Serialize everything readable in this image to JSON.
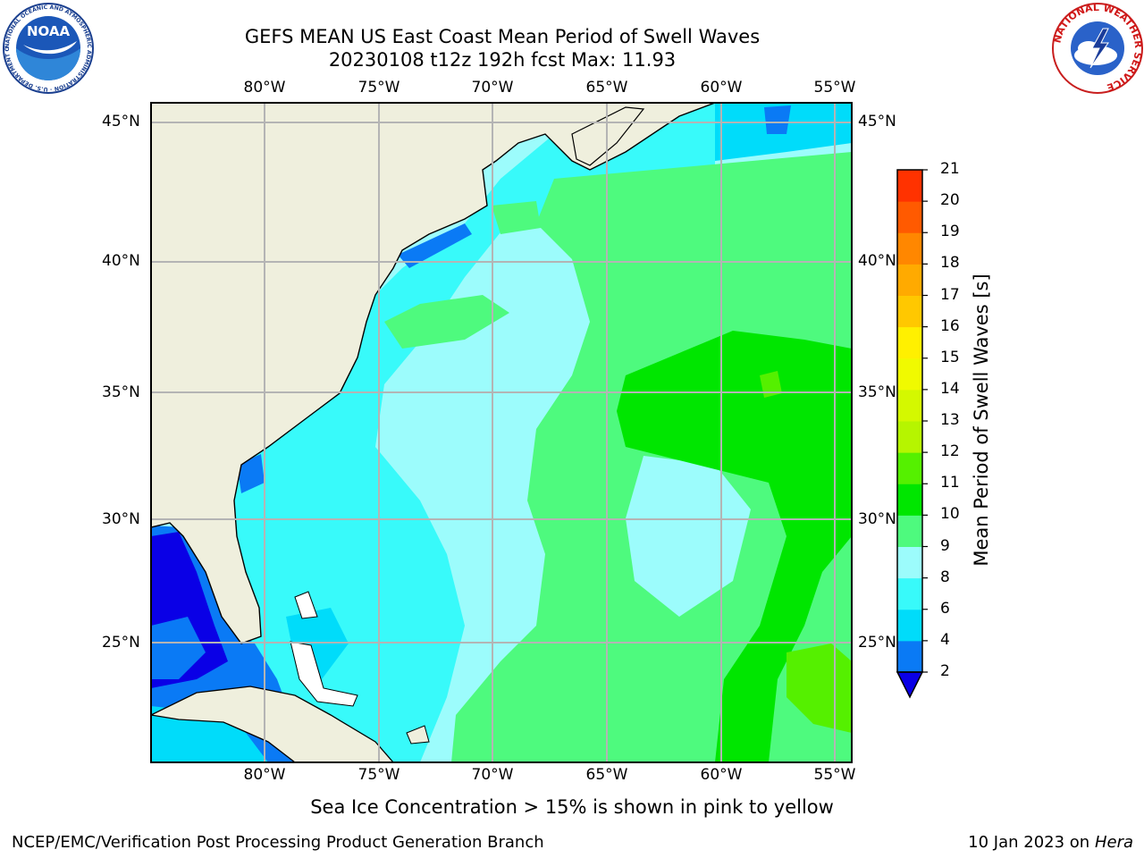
{
  "title": {
    "line1": "GEFS MEAN US East Coast Mean Period of Swell Waves",
    "line2": "20230108 t12z 192h fcst   Max: 11.93"
  },
  "map": {
    "lon_labels": [
      "80°W",
      "75°W",
      "70°W",
      "65°W",
      "60°W",
      "55°W"
    ],
    "lat_labels": [
      "45°N",
      "40°N",
      "35°N",
      "30°N",
      "25°N"
    ],
    "lon_range": [
      -85,
      -54
    ],
    "lat_range": [
      20,
      46
    ],
    "grid": true
  },
  "colorbar": {
    "label": "Mean Period of Swell Waves [s]",
    "ticks": [
      "2",
      "4",
      "6",
      "8",
      "9",
      "10",
      "11",
      "12",
      "13",
      "14",
      "15",
      "16",
      "17",
      "18",
      "19",
      "20",
      "21"
    ],
    "colors": [
      "#0a7af5",
      "#00dcfa",
      "#38fafa",
      "#9cfcfc",
      "#4efa7e",
      "#00e600",
      "#55f000",
      "#b6f500",
      "#d4f800",
      "#f0fa00",
      "#fff000",
      "#ffc800",
      "#ffaa00",
      "#ff8700",
      "#ff5a00",
      "#ff3200"
    ],
    "extend_color": "#0a00e6"
  },
  "notes": {
    "sea_ice": "Sea Ice Concentration > 15% is shown in pink to yellow"
  },
  "footer": {
    "left": "NCEP/EMC/Verification Post Processing Product Generation Branch",
    "date": "10 Jan 2023 on ",
    "host": "Hera"
  },
  "logos": {
    "left": "NOAA",
    "left_ring": "NATIONAL OCEANIC AND ATMOSPHERIC ADMINISTRATION · U.S. DEPARTMENT OF COMMERCE",
    "right_ring": "NATIONAL WEATHER SERVICE"
  }
}
